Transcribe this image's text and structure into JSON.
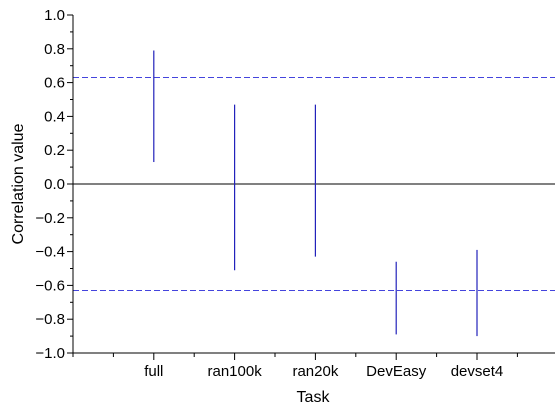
{
  "chart_data": {
    "type": "errorbar",
    "xlabel": "Task",
    "ylabel": "Correlation value",
    "categories": [
      "full",
      "ran100k",
      "ran20k",
      "DevEasy",
      "devset4"
    ],
    "intervals": [
      {
        "category": "full",
        "low": 0.13,
        "high": 0.79
      },
      {
        "category": "ran100k",
        "low": -0.51,
        "high": 0.47
      },
      {
        "category": "ran20k",
        "low": -0.43,
        "high": 0.47
      },
      {
        "category": "DevEasy",
        "low": -0.89,
        "high": -0.46
      },
      {
        "category": "devset4",
        "low": -0.9,
        "high": -0.39
      }
    ],
    "ylim": [
      -1.0,
      1.0
    ],
    "yticks": [
      -1.0,
      -0.8,
      -0.6,
      -0.4,
      -0.2,
      0.0,
      0.2,
      0.4,
      0.6,
      0.8,
      1.0
    ],
    "ytick_labels": [
      "−1.0",
      "−0.8",
      "−0.6",
      "−0.4",
      "−0.2",
      "0.0",
      "0.2",
      "0.4",
      "0.6",
      "0.8",
      "1.0"
    ],
    "reference_lines": [
      {
        "y": 0.63,
        "style": "dashed",
        "color": "#4444dd"
      },
      {
        "y": -0.63,
        "style": "dashed",
        "color": "#4444dd"
      },
      {
        "y": 0.0,
        "style": "solid",
        "color": "#000000"
      }
    ],
    "colors": {
      "interval": "#2222bb",
      "axis": "#000000"
    },
    "grid": false,
    "legend": "none"
  }
}
